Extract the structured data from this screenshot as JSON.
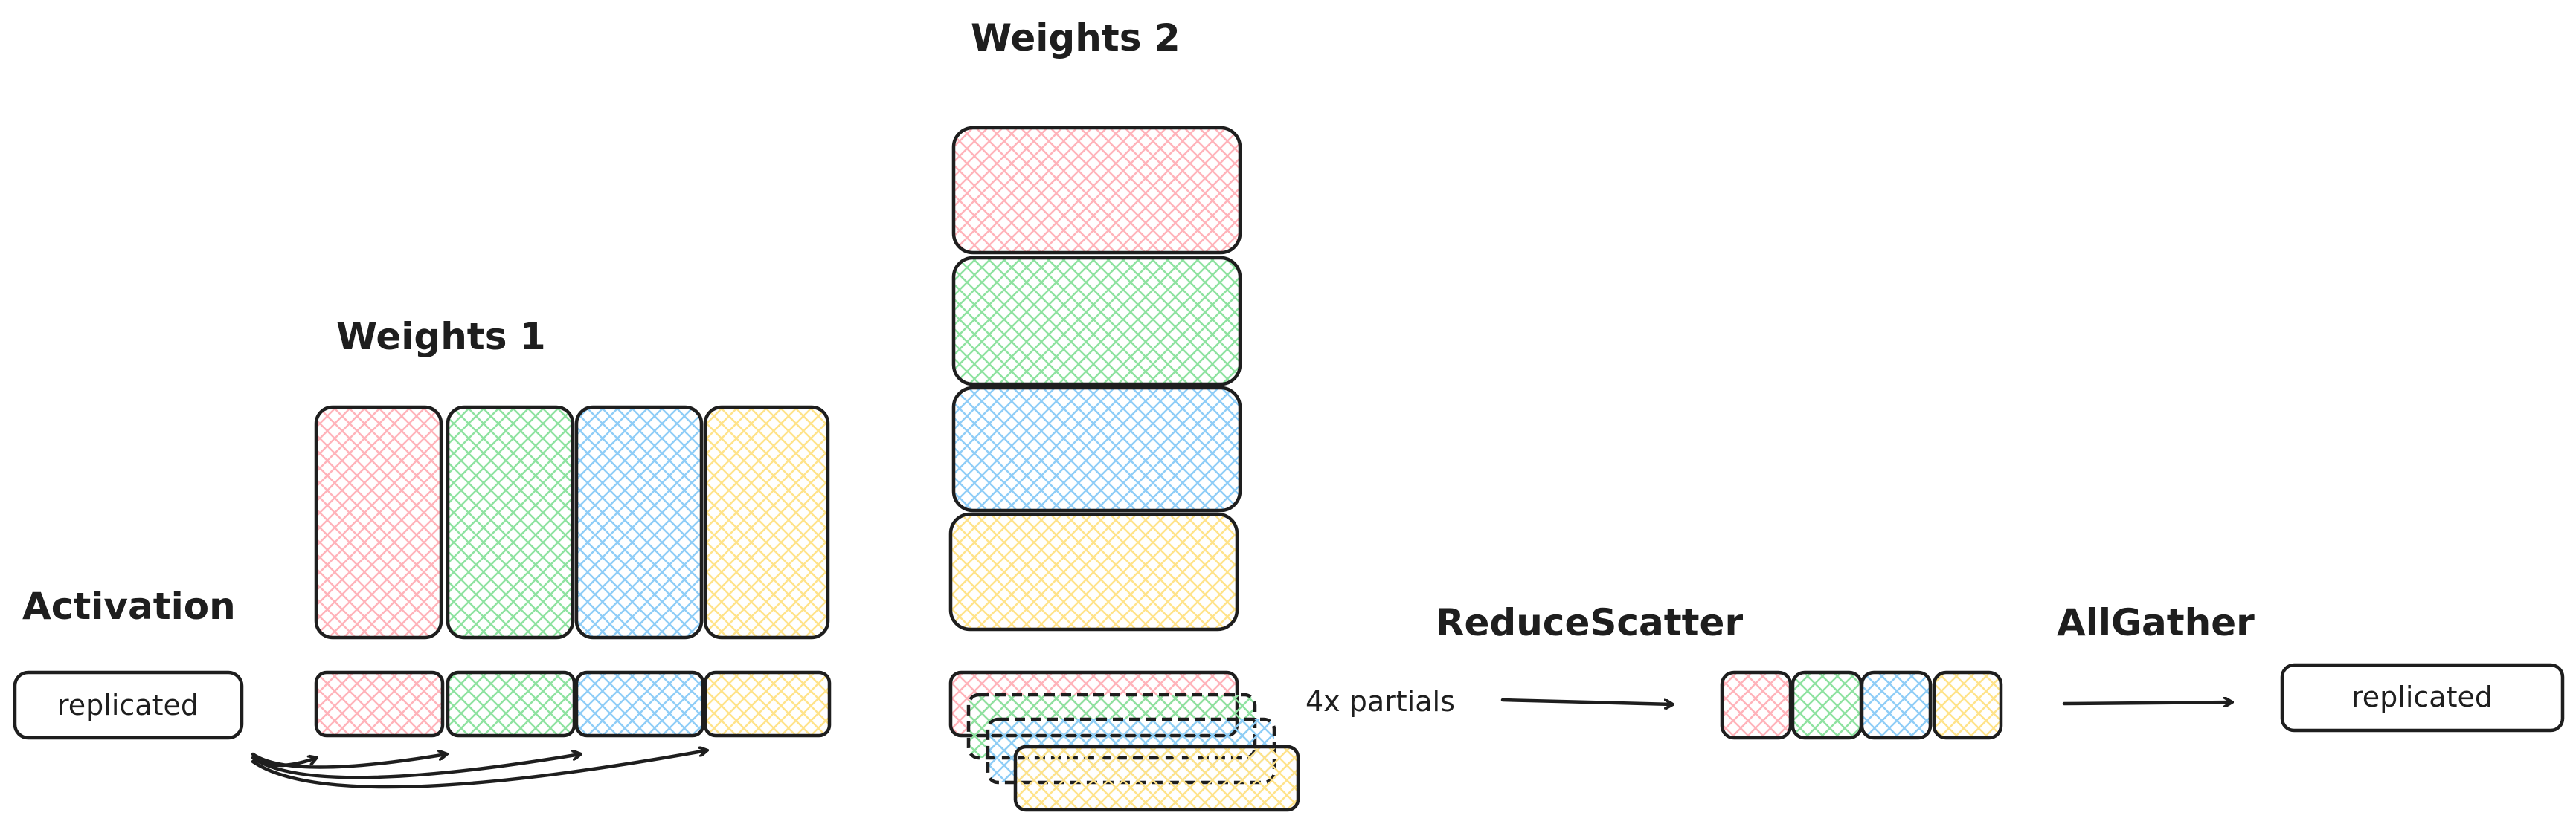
{
  "colors": {
    "stroke": "#1e1e1e",
    "shard_1": "#ffb3ba",
    "shard_2": "#8ee2a0",
    "shard_3": "#8fcdf7",
    "shard_4": "#ffe38a"
  },
  "labels": {
    "activation": "Activation",
    "weights_1": "Weights 1",
    "weights_2": "Weights 2",
    "reduce_scatter": "ReduceScatter",
    "all_gather": "AllGather",
    "partials": "4x partials",
    "replicated_input": "replicated",
    "replicated_output": "replicated"
  }
}
